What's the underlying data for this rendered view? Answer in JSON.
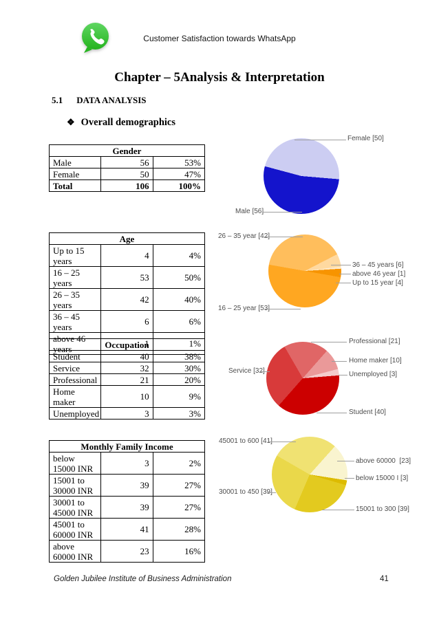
{
  "header": {
    "title": "Customer Satisfaction towards WhatsApp"
  },
  "chapter": {
    "title": "Chapter – 5Analysis & Interpretation",
    "section_number": "5.1",
    "section_title": "DATA ANALYSIS",
    "bullet_symbol": "❖",
    "bullet_text": "Overall demographics"
  },
  "footer": {
    "institute": "Golden Jubilee Institute of Business Administration",
    "page_number": "41"
  },
  "tables": [
    {
      "title": "Gender",
      "rows": [
        [
          "Male",
          "56",
          "53%"
        ],
        [
          "Female",
          "50",
          "47%"
        ],
        [
          "Total",
          "106",
          "100%"
        ]
      ],
      "bold_rows": [
        2
      ]
    },
    {
      "title": "Age",
      "rows": [
        [
          "Up to 15 years",
          "4",
          "4%"
        ],
        [
          "16 – 25 years",
          "53",
          "50%"
        ],
        [
          "26 – 35 years",
          "42",
          "40%"
        ],
        [
          "36 – 45 years",
          "6",
          "6%"
        ],
        [
          "above 46 years",
          "1",
          "1%"
        ]
      ],
      "bold_rows": []
    },
    {
      "title": "Occupation",
      "rows": [
        [
          "Student",
          "40",
          "38%"
        ],
        [
          "Service",
          "32",
          "30%"
        ],
        [
          "Professional",
          "21",
          "20%"
        ],
        [
          "Home maker",
          "10",
          "9%"
        ],
        [
          "Unemployed",
          "3",
          "3%"
        ]
      ],
      "bold_rows": []
    },
    {
      "title": "Monthly Family Income",
      "rows": [
        [
          "below 15000 INR",
          "3",
          "2%"
        ],
        [
          "15001 to 30000 INR",
          "39",
          "27%"
        ],
        [
          "30001 to 45000 INR",
          "39",
          "27%"
        ],
        [
          "45001 to 60000 INR",
          "41",
          "28%"
        ],
        [
          "above 60000 INR",
          "23",
          "16%"
        ]
      ],
      "bold_rows": []
    }
  ],
  "chart_data": [
    {
      "type": "pie",
      "title": "Gender",
      "start_angle": 285,
      "legend_position": "callouts",
      "slices": [
        {
          "label": "Female",
          "value": 50,
          "color": "#cccdf2"
        },
        {
          "label": "Male",
          "value": 56,
          "color": "#1414cc"
        }
      ],
      "callouts": [
        {
          "text": "Female [50]"
        },
        {
          "text": "Male [56]"
        }
      ]
    },
    {
      "type": "pie",
      "title": "Age",
      "start_angle": 280,
      "legend_position": "callouts",
      "slices": [
        {
          "label": "26 – 35 year",
          "value": 42,
          "color": "#ffbe5c"
        },
        {
          "label": "36 – 45 years",
          "value": 6,
          "color": "#ffd9a0"
        },
        {
          "label": "above 46 year",
          "value": 1,
          "color": "#ffe9c9"
        },
        {
          "label": "Up to 15 year",
          "value": 4,
          "color": "#f79400"
        },
        {
          "label": "16 – 25 year",
          "value": 53,
          "color": "#ffa721"
        }
      ],
      "callouts": [
        {
          "text": "26 – 35 year [42]"
        },
        {
          "text": "36 – 45 years [6]"
        },
        {
          "text": "above 46 year [1]"
        },
        {
          "text": "Up to 15 year [4]"
        },
        {
          "text": "16 – 25 year [53]"
        }
      ]
    },
    {
      "type": "pie",
      "title": "Occupation",
      "start_angle": 330,
      "legend_position": "callouts",
      "slices": [
        {
          "label": "Professional",
          "value": 21,
          "color": "#e06666"
        },
        {
          "label": "Home maker",
          "value": 10,
          "color": "#ea9999"
        },
        {
          "label": "Unemployed",
          "value": 3,
          "color": "#f4cccc"
        },
        {
          "label": "Student",
          "value": 40,
          "color": "#cc0000"
        },
        {
          "label": "Service",
          "value": 32,
          "color": "#d83a3a"
        }
      ],
      "callouts": [
        {
          "text": "Professional [21]"
        },
        {
          "text": "Home maker [10]"
        },
        {
          "text": "Unemployed [3]"
        },
        {
          "text": "Service [32]"
        },
        {
          "text": "Student [40]"
        }
      ]
    },
    {
      "type": "pie",
      "title": "Monthly Family Income",
      "start_angle": 300,
      "legend_position": "callouts",
      "slices": [
        {
          "label": "45001 to 600",
          "value": 41,
          "color": "#f0e272"
        },
        {
          "label": "above 60000",
          "value": 23,
          "color": "#f9f4cf"
        },
        {
          "label": "below 15000 I",
          "value": 3,
          "color": "#ddbb00"
        },
        {
          "label": "15001 to 300",
          "value": 39,
          "color": "#e3ca1f"
        },
        {
          "label": "30001 to 450",
          "value": 39,
          "color": "#ead84a"
        }
      ],
      "callouts": [
        {
          "text": "45001 to 600 [41]"
        },
        {
          "text": "above 60000  [23]"
        },
        {
          "text": "below 15000 I [3]"
        },
        {
          "text": "15001 to 300 [39]"
        },
        {
          "text": "30001 to 450 [39]"
        }
      ]
    }
  ]
}
